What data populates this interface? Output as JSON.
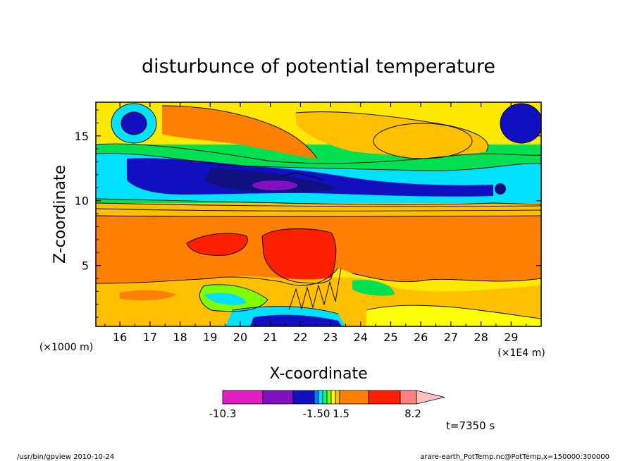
{
  "chart_data": {
    "type": "heatmap",
    "title": "disturbunce of potential temperature",
    "xlabel": "X-coordinate",
    "ylabel": "Z-coordinate",
    "x_scale_note": "(×1E4 m)",
    "y_scale_note": "(×1000 m)",
    "xlim": [
      15.2,
      30.0
    ],
    "ylim": [
      0.3,
      17.6
    ],
    "x_ticks": [
      "16",
      "17",
      "18",
      "19",
      "20",
      "21",
      "22",
      "23",
      "24",
      "25",
      "26",
      "27",
      "28",
      "29"
    ],
    "y_ticks": [
      "5",
      "10",
      "15"
    ],
    "colorbar": {
      "tick_labels": [
        "-10.3",
        "-1.50",
        "1.5",
        "8.2"
      ],
      "colors": [
        "#e020c0",
        "#8010c0",
        "#1010c0",
        "#0080ff",
        "#00e0ff",
        "#00ff80",
        "#80ff00",
        "#ffff00",
        "#ffc000",
        "#ff8000",
        "#ff2000",
        "#ff8080",
        "#ffc0c0"
      ]
    },
    "annotation": "t=7350 s"
  },
  "footer": {
    "left": "/usr/bin/gpview   2010-10-24",
    "right": "arare-earth_PotTemp.nc@PotTemp,x=150000:300000"
  }
}
